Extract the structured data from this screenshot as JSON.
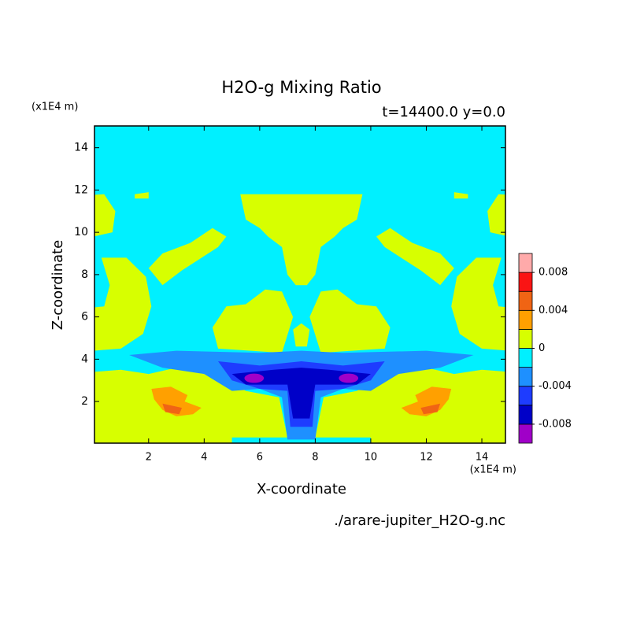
{
  "chart_data": {
    "type": "contour",
    "title": "H2O-g Mixing Ratio",
    "subtitle": "t=14400.0 y=0.0",
    "x_label": "X-coordinate",
    "y_label": "Z-coordinate",
    "x_unit": "(x1E4 m)",
    "y_unit": "(x1E4 m)",
    "source": "./arare-jupiter_H2O-g.nc",
    "xlim": [
      0.05,
      14.85
    ],
    "ylim": [
      0.03,
      15.03
    ],
    "xticks": [
      2,
      4,
      6,
      8,
      10,
      12,
      14
    ],
    "yticks": [
      2,
      4,
      6,
      8,
      10,
      12,
      14
    ],
    "colorbar": {
      "lim": [
        -0.01,
        0.01
      ],
      "colors": [
        "#a000c8",
        "#0000c8",
        "#1e3cff",
        "#1e90ff",
        "#00f0ff",
        "#d7ff00",
        "#ffa000",
        "#f06414",
        "#fa1414",
        "#ffaaaa"
      ],
      "ticks": [
        -0.008,
        -0.004,
        0,
        0.004,
        0.008
      ]
    }
  }
}
